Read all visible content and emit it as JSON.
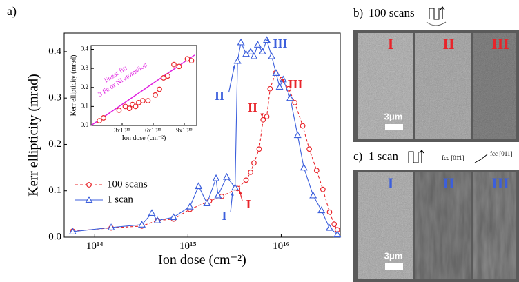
{
  "figure_label": "a)",
  "chart_data": [
    {
      "type": "line",
      "log_x": true,
      "xlabel": "Ion dose (cm⁻²)",
      "ylabel": "Kerr ellipticity (mrad)",
      "xlim": [
        47000000000000.0,
        4.3e+16
      ],
      "ylim": [
        0,
        0.44
      ],
      "xticks": [
        {
          "value": 100000000000000.0,
          "label": "10¹⁴"
        },
        {
          "value": 1000000000000000.0,
          "label": "10¹⁵"
        },
        {
          "value": 1e+16,
          "label": "10¹⁶"
        }
      ],
      "yticks": [
        {
          "value": 0,
          "label": "0.0"
        },
        0.1,
        0.2,
        0.3,
        0.4
      ],
      "legend": "lower left",
      "series": [
        {
          "name": "100 scans",
          "color": "#e8242a",
          "marker": "circle",
          "dashed": true,
          "x": [
            58000000000000.0,
            150000000000000.0,
            320000000000000.0,
            470000000000000.0,
            700000000000000.0,
            1050000000000000.0,
            1700000000000000.0,
            2300000000000000.0,
            3400000000000000.0,
            4200000000000000.0,
            4700000000000000.0,
            5100000000000000.0,
            5800000000000000.0,
            6400000000000000.0,
            7000000000000000.0,
            7600000000000000.0,
            8700000000000000.0,
            1.02e+16,
            1.2e+16,
            1.4e+16,
            1.7e+16,
            2e+16,
            2.4e+16,
            2.8e+16,
            3.3e+16,
            3.7e+16,
            4e+16
          ],
          "values": [
            0.013,
            0.02,
            0.024,
            0.036,
            0.039,
            0.06,
            0.078,
            0.088,
            0.105,
            0.123,
            0.14,
            0.16,
            0.19,
            0.253,
            0.26,
            0.32,
            0.354,
            0.34,
            0.32,
            0.29,
            0.24,
            0.19,
            0.144,
            0.103,
            0.054,
            0.028,
            0.016
          ]
        },
        {
          "name": "1 scan",
          "color": "#3c5fdc",
          "marker": "triangle",
          "dashed": false,
          "x": [
            58000000000000.0,
            150000000000000.0,
            320000000000000.0,
            410000000000000.0,
            470000000000000.0,
            700000000000000.0,
            1050000000000000.0,
            1300000000000000.0,
            1600000000000000.0,
            2000000000000000.0,
            2100000000000000.0,
            2600000000000000.0,
            3200000000000000.0,
            3400000000000000.0,
            3700000000000000.0,
            4200000000000000.0,
            4700000000000000.0,
            5100000000000000.0,
            5600000000000000.0,
            6300000000000000.0,
            7000000000000000.0,
            7900000000000000.0,
            8800000000000000.0,
            9600000000000000.0,
            1.05e+16,
            1.25e+16,
            1.5e+16,
            1.75e+16,
            2.2e+16,
            2.7e+16,
            3.3e+16,
            4e+16
          ],
          "values": [
            0.012,
            0.021,
            0.027,
            0.052,
            0.036,
            0.043,
            0.066,
            0.11,
            0.073,
            0.127,
            0.09,
            0.13,
            0.107,
            0.38,
            0.42,
            0.395,
            0.4,
            0.39,
            0.415,
            0.4,
            0.425,
            0.39,
            0.354,
            0.324,
            0.34,
            0.3,
            0.22,
            0.15,
            0.09,
            0.058,
            0.02,
            0.006
          ]
        }
      ],
      "annotations": [
        {
          "text": "I",
          "color": "#3c5fdc"
        },
        {
          "text": "II",
          "color": "#3c5fdc"
        },
        {
          "text": "III",
          "color": "#3c5fdc"
        },
        {
          "text": "I",
          "color": "#e8242a"
        },
        {
          "text": "II",
          "color": "#e8242a"
        },
        {
          "text": "III",
          "color": "#e8242a"
        }
      ]
    },
    {
      "type": "scatter",
      "xlabel": "Ion dose (cm⁻²)",
      "ylabel": "Kerr ellipticity (mrad)",
      "xlim": [
        0,
        1.02e+16
      ],
      "ylim": [
        0,
        0.42
      ],
      "xticks": [
        {
          "value": 3000000000000000.0,
          "label": "3x10¹⁵"
        },
        {
          "value": 6000000000000000.0,
          "label": "6x10¹⁵"
        },
        {
          "value": 9000000000000000.0,
          "label": "9x10¹⁵"
        }
      ],
      "yticks": [
        {
          "value": 0,
          "label": "0.0"
        },
        0.1,
        0.2,
        0.3,
        0.4
      ],
      "color": "#e8242a",
      "x": [
        800000000000000.0,
        1200000000000000.0,
        2700000000000000.0,
        3300000000000000.0,
        3700000000000000.0,
        4000000000000000.0,
        4300000000000000.0,
        4600000000000000.0,
        5000000000000000.0,
        5500000000000000.0,
        6200000000000000.0,
        6600000000000000.0,
        7000000000000000.0,
        7400000000000000.0,
        8000000000000000.0,
        8500000000000000.0,
        9300000000000000.0,
        9700000000000000.0
      ],
      "values": [
        0.025,
        0.04,
        0.08,
        0.1,
        0.09,
        0.11,
        0.1,
        0.12,
        0.13,
        0.13,
        0.16,
        0.19,
        0.25,
        0.26,
        0.32,
        0.31,
        0.35,
        0.34
      ],
      "fit": {
        "x": [
          0,
          1e+16
        ],
        "y": [
          0,
          0.37
        ],
        "color": "#e020e0"
      },
      "fit_text": [
        "linear fit:",
        "3 Fe or Ni atoms/ion"
      ]
    }
  ],
  "panels": [
    {
      "label": "b)",
      "title": "100 scans",
      "strips": [
        "I",
        "II",
        "III"
      ],
      "strip_color": "#e8242a",
      "scale": "3μm"
    },
    {
      "label": "c)",
      "title": "1 scan",
      "strips": [
        "I",
        "II",
        "III"
      ],
      "strip_color": "#3c5fdc",
      "scale": "3μm",
      "directions": [
        "fcc [01̄1]",
        "fcc [011]"
      ]
    }
  ]
}
